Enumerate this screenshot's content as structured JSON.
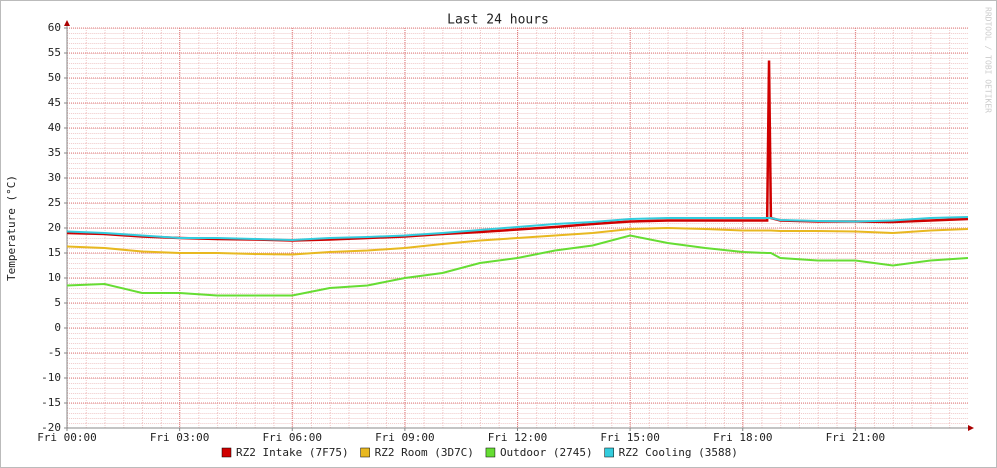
{
  "chart_data": {
    "type": "line",
    "title": "Last 24 hours",
    "y_label": "Temperature (°C)",
    "side_text": "RRDTOOL / TOBI OETIKER",
    "x": [
      0,
      1,
      2,
      3,
      4,
      5,
      6,
      7,
      8,
      9,
      10,
      11,
      12,
      13,
      14,
      15,
      16,
      17,
      18,
      18.65,
      18.7,
      18.75,
      19,
      20,
      21,
      22,
      23,
      24
    ],
    "xlim": [
      0,
      24
    ],
    "xticks": [
      {
        "value": 0,
        "label": "Fri 00:00"
      },
      {
        "value": 3,
        "label": "Fri 03:00"
      },
      {
        "value": 6,
        "label": "Fri 06:00"
      },
      {
        "value": 9,
        "label": "Fri 09:00"
      },
      {
        "value": 12,
        "label": "Fri 12:00"
      },
      {
        "value": 15,
        "label": "Fri 15:00"
      },
      {
        "value": 18,
        "label": "Fri 18:00"
      },
      {
        "value": 21,
        "label": "Fri 21:00"
      }
    ],
    "ylim": [
      -20,
      60
    ],
    "yticks": [
      -20,
      -15,
      -10,
      -5,
      0,
      5,
      10,
      15,
      20,
      25,
      30,
      35,
      40,
      45,
      50,
      55,
      60
    ],
    "grid": true,
    "series": [
      {
        "name": "RZ2 Intake (7F75)",
        "color": "#d00000",
        "values": [
          19,
          18.8,
          18.3,
          18,
          17.8,
          17.7,
          17.5,
          17.7,
          18,
          18.3,
          18.8,
          19.2,
          19.7,
          20.2,
          20.8,
          21.3,
          21.5,
          21.5,
          21.5,
          21.5,
          53.5,
          22,
          21.5,
          21.3,
          21.3,
          21.2,
          21.5,
          21.8
        ]
      },
      {
        "name": "RZ2 Room (3D7C)",
        "color": "#e8b820",
        "values": [
          16.3,
          16,
          15.3,
          15,
          15,
          14.8,
          14.7,
          15.2,
          15.5,
          16,
          16.8,
          17.5,
          18,
          18.5,
          19,
          19.8,
          20,
          19.8,
          19.5,
          19.5,
          19.5,
          19.5,
          19.4,
          19.4,
          19.3,
          19,
          19.5,
          19.8
        ]
      },
      {
        "name": "Outdoor (2745)",
        "color": "#66dd33",
        "values": [
          8.5,
          8.8,
          7,
          7,
          6.5,
          6.5,
          6.5,
          8,
          8.5,
          10,
          11,
          13,
          14,
          15.5,
          16.5,
          18.5,
          17,
          16,
          15.2,
          15,
          15,
          15,
          14,
          13.5,
          13.5,
          12.5,
          13.5,
          14
        ]
      },
      {
        "name": "RZ2 Cooling (3588)",
        "color": "#33ccdd",
        "values": [
          19.3,
          19,
          18.5,
          18,
          18,
          17.8,
          17.6,
          18,
          18.2,
          18.5,
          19,
          19.6,
          20.2,
          20.8,
          21.2,
          21.8,
          22,
          22,
          22,
          22,
          22,
          22,
          21.6,
          21.4,
          21.3,
          21.5,
          22,
          22.2
        ]
      }
    ]
  }
}
